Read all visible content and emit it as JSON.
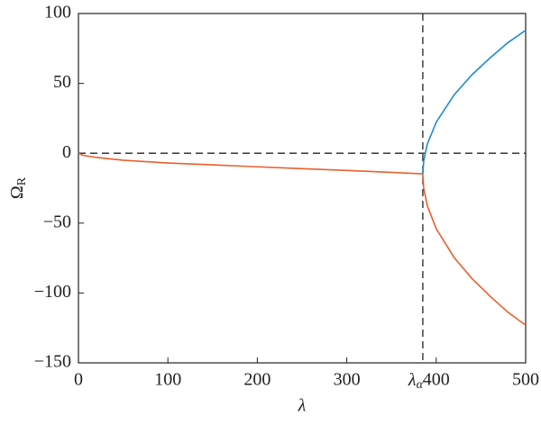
{
  "chart_data": {
    "type": "line",
    "xlabel": "λ",
    "ylabel": "Ω",
    "ylabel_sub": "R",
    "xlim": [
      0,
      500
    ],
    "xticks": [
      0,
      100,
      200,
      300,
      400,
      500
    ],
    "ylim": [
      -150,
      100
    ],
    "yticks": [
      {
        "value": -150,
        "label": "−150"
      },
      {
        "value": -100,
        "label": "−100"
      },
      {
        "value": -50,
        "label": "−50"
      },
      0,
      50,
      100
    ],
    "vline": {
      "x": 385,
      "label": "λ",
      "label_sub": "α"
    },
    "hline": {
      "y": 0
    },
    "series": [
      {
        "color": "#e8602c",
        "x": [
          0,
          5,
          20,
          50,
          100,
          150,
          200,
          250,
          300,
          350,
          385
        ],
        "values": [
          0,
          -1.5,
          -3,
          -5,
          -7,
          -8.3,
          -9.7,
          -11,
          -12.3,
          -13.7,
          -14.7
        ]
      },
      {
        "color": "#e8602c",
        "x": [
          385,
          386,
          390,
          400,
          420,
          440,
          460,
          480,
          500
        ],
        "values": [
          -15,
          -25.1,
          -37.5,
          -54,
          -74.6,
          -89.7,
          -102.2,
          -113.7,
          -123
        ]
      },
      {
        "color": "#1f8ad0",
        "x": [
          385,
          386,
          390,
          400,
          420,
          440,
          460,
          480,
          500
        ],
        "values": [
          -15,
          -5.4,
          6.5,
          22.2,
          41.8,
          56.2,
          68.1,
          79.1,
          88
        ]
      }
    ]
  }
}
